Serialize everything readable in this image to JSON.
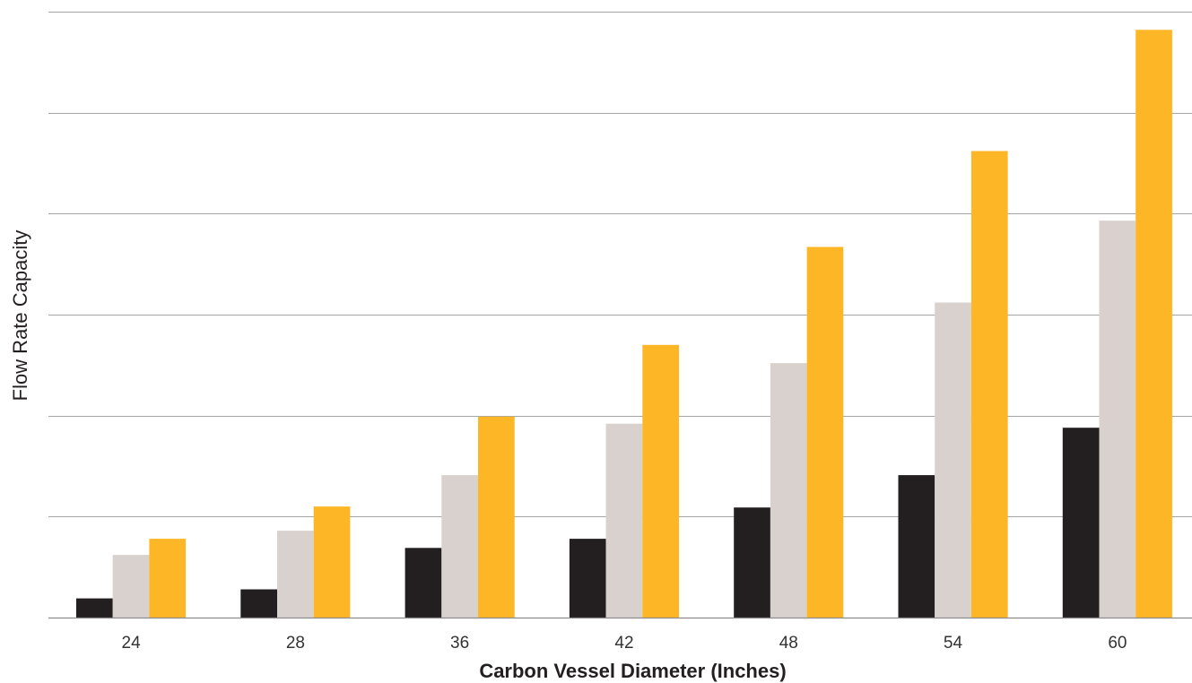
{
  "chart_data": {
    "type": "bar",
    "title": "",
    "xlabel": "Carbon Vessel Diameter (Inches)",
    "ylabel": "Flow Rate Capacity",
    "categories": [
      "24",
      "28",
      "36",
      "42",
      "48",
      "54",
      "60"
    ],
    "series": [
      {
        "values": [
          19,
          28,
          69,
          78,
          109,
          141,
          188
        ]
      },
      {
        "values": [
          62,
          86,
          141,
          192,
          252,
          312,
          393
        ]
      },
      {
        "values": [
          78,
          110,
          199,
          270,
          367,
          462,
          582
        ]
      }
    ],
    "ylim": [
      0,
      600
    ],
    "y_gridlines": [
      100,
      200,
      300,
      400,
      500,
      600
    ],
    "y_tick_labels_shown": false,
    "grid": true,
    "legend": "none",
    "colors": {
      "series": [
        "#231f20",
        "#d8d1ce",
        "#fdb626"
      ],
      "grid": "#a6a6a6",
      "axis": "#8c8c8c",
      "text": "#231f20"
    }
  }
}
